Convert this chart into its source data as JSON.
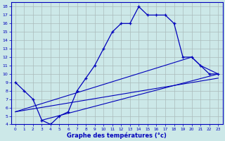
{
  "xlabel": "Graphe des températures (°c)",
  "xlim": [
    -0.5,
    23.5
  ],
  "ylim": [
    4,
    18.5
  ],
  "yticks": [
    4,
    5,
    6,
    7,
    8,
    9,
    10,
    11,
    12,
    13,
    14,
    15,
    16,
    17,
    18
  ],
  "xticks": [
    0,
    1,
    2,
    3,
    4,
    5,
    6,
    7,
    8,
    9,
    10,
    11,
    12,
    13,
    14,
    15,
    16,
    17,
    18,
    19,
    20,
    21,
    22,
    23
  ],
  "bg_color": "#cce8e8",
  "line_color": "#0000bb",
  "grid_color": "#aabbbb",
  "line1_x": [
    0,
    1,
    2,
    3,
    4,
    5,
    6,
    7,
    8,
    9,
    10,
    11,
    12,
    13,
    14,
    15,
    16,
    17,
    18,
    19,
    20,
    21,
    22,
    23
  ],
  "line1_y": [
    9,
    8,
    7,
    4.5,
    4,
    5,
    5.5,
    8,
    9.5,
    11,
    13,
    15,
    16,
    16,
    18,
    17,
    17,
    17,
    16,
    12,
    12,
    11,
    10,
    10
  ],
  "line2_x": [
    0,
    20,
    21,
    22,
    23
  ],
  "line2_y": [
    5.5,
    12,
    11,
    10.5,
    10
  ],
  "line3_x": [
    0,
    23
  ],
  "line3_y": [
    5.5,
    9.5
  ],
  "line4_x": [
    3,
    23
  ],
  "line4_y": [
    4.5,
    10
  ]
}
